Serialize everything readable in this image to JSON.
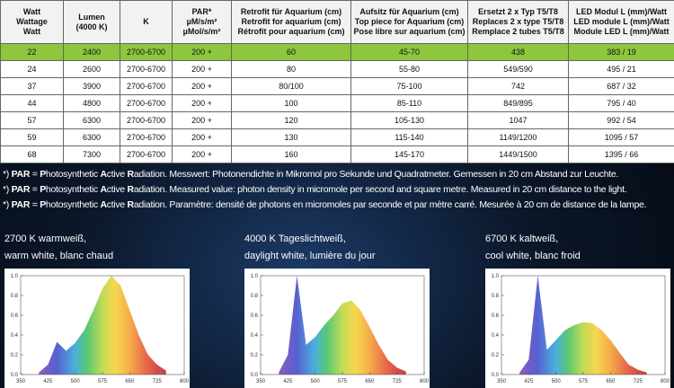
{
  "table": {
    "header": [
      [
        "Watt",
        "Wattage",
        "Watt"
      ],
      [
        "Lumen",
        "(4000 K)"
      ],
      [
        "K"
      ],
      [
        "PAR*",
        "µM/s/m²",
        "µMol/s/m²"
      ],
      [
        "Retrofit für Aquarium (cm)",
        "Retrofit for aquarium (cm)",
        "Rétrofit pour aquarium (cm)"
      ],
      [
        "Aufsitz für Aquarium (cm)",
        "Top piece for Aquarium (cm)",
        "Pose libre sur aquarium (cm)"
      ],
      [
        "Ersetzt 2 x Typ T5/T8",
        "Replaces 2 x type T5/T8",
        "Remplace 2 tubes T5/T8"
      ],
      [
        "LED Modul L (mm)/Watt",
        "LED module L (mm)/Watt",
        "Module LED L (mm)/Watt"
      ]
    ],
    "rows": [
      [
        "22",
        "2400",
        "2700-6700",
        "200 +",
        "60",
        "45-70",
        "438",
        "383 / 19"
      ],
      [
        "24",
        "2600",
        "2700-6700",
        "200 +",
        "80",
        "55-80",
        "549/590",
        "495 / 21"
      ],
      [
        "37",
        "3900",
        "2700-6700",
        "200 +",
        "80/100",
        "75-100",
        "742",
        "687 / 32"
      ],
      [
        "44",
        "4800",
        "2700-6700",
        "200 +",
        "100",
        "85-110",
        "849/895",
        "795 / 40"
      ],
      [
        "57",
        "6300",
        "2700-6700",
        "200 +",
        "120",
        "105-130",
        "1047",
        "992 / 54"
      ],
      [
        "59",
        "6300",
        "2700-6700",
        "200 +",
        "130",
        "115-140",
        "1149/1200",
        "1095 / 57"
      ],
      [
        "68",
        "7300",
        "2700-6700",
        "200 +",
        "160",
        "145-170",
        "1449/1500",
        "1395 / 66"
      ]
    ]
  },
  "footnotes": [
    [
      "*) ",
      "PAR",
      " = ",
      "P",
      "hotosynthetic ",
      "A",
      "ctive ",
      "R",
      "adiation. Messwert: Photonendichte in Mikromol pro Sekunde und Quadratmeter. Gemessen in 20 cm Abstand zur Leuchte."
    ],
    [
      "*) ",
      "PAR",
      " = ",
      "P",
      "hotosynthetic ",
      "A",
      "ctive ",
      "R",
      "adiation. Measured value: photon density in micromole per second and square metre. Measured in 20 cm distance to the light."
    ],
    [
      "*) ",
      "PAR",
      " = ",
      "P",
      "hotosynthetic ",
      "A",
      "ctive ",
      "R",
      "adiation. Paramètre: densité de photons en micromoles par seconde et par mètre carré. Mesurée à 20 cm de distance de la lampe."
    ]
  ],
  "chart_data": [
    {
      "type": "area",
      "title": "2700 K warmweiß,",
      "subtitle": "warm white, blanc chaud",
      "x": [
        400,
        425,
        450,
        475,
        500,
        525,
        550,
        575,
        600,
        625,
        650,
        675,
        700,
        725,
        750
      ],
      "values": [
        0.02,
        0.1,
        0.33,
        0.24,
        0.32,
        0.45,
        0.65,
        0.87,
        1.0,
        0.9,
        0.65,
        0.4,
        0.2,
        0.1,
        0.04
      ],
      "xlim": [
        350,
        800
      ],
      "ylim": [
        0,
        1
      ],
      "xticks": [
        350,
        425,
        500,
        575,
        650,
        725,
        800
      ],
      "yticks": [
        {
          "value": 0,
          "label": "0.0"
        },
        {
          "value": 0.2,
          "label": "0.2"
        },
        {
          "value": 0.4,
          "label": "0.4"
        },
        {
          "value": 0.6,
          "label": "0.6"
        },
        {
          "value": 0.8,
          "label": "0.8"
        },
        {
          "value": 1,
          "label": "1.0"
        }
      ]
    },
    {
      "type": "area",
      "title": "4000 K Tageslichtweiß,",
      "subtitle": "daylight white, lumière du jour",
      "x": [
        400,
        425,
        450,
        475,
        500,
        525,
        550,
        575,
        600,
        625,
        650,
        675,
        700,
        725,
        750
      ],
      "values": [
        0.02,
        0.2,
        1.0,
        0.3,
        0.38,
        0.5,
        0.6,
        0.72,
        0.75,
        0.65,
        0.48,
        0.3,
        0.15,
        0.07,
        0.03
      ],
      "xlim": [
        350,
        800
      ],
      "ylim": [
        0,
        1
      ],
      "xticks": [
        350,
        425,
        500,
        575,
        650,
        725,
        800
      ],
      "yticks": [
        {
          "value": 0,
          "label": "0.0"
        },
        {
          "value": 0.2,
          "label": "0.2"
        },
        {
          "value": 0.4,
          "label": "0.4"
        },
        {
          "value": 0.6,
          "label": "0.6"
        },
        {
          "value": 0.8,
          "label": "0.8"
        },
        {
          "value": 1,
          "label": "1.0"
        }
      ]
    },
    {
      "type": "area",
      "title": "6700 K kaltweiß,",
      "subtitle": "cool white, blanc froid",
      "x": [
        400,
        425,
        450,
        475,
        500,
        525,
        550,
        575,
        600,
        625,
        650,
        675,
        700,
        725,
        750
      ],
      "values": [
        0.02,
        0.15,
        1.0,
        0.25,
        0.35,
        0.45,
        0.5,
        0.53,
        0.52,
        0.45,
        0.35,
        0.22,
        0.1,
        0.05,
        0.02
      ],
      "xlim": [
        350,
        800
      ],
      "ylim": [
        0,
        1
      ],
      "xticks": [
        350,
        425,
        500,
        575,
        650,
        725,
        800
      ],
      "yticks": [
        {
          "value": 0,
          "label": "0.0"
        },
        {
          "value": 0.2,
          "label": "0.2"
        },
        {
          "value": 0.4,
          "label": "0.4"
        },
        {
          "value": 0.6,
          "label": "0.6"
        },
        {
          "value": 0.8,
          "label": "0.8"
        },
        {
          "value": 1,
          "label": "1.0"
        }
      ]
    }
  ]
}
